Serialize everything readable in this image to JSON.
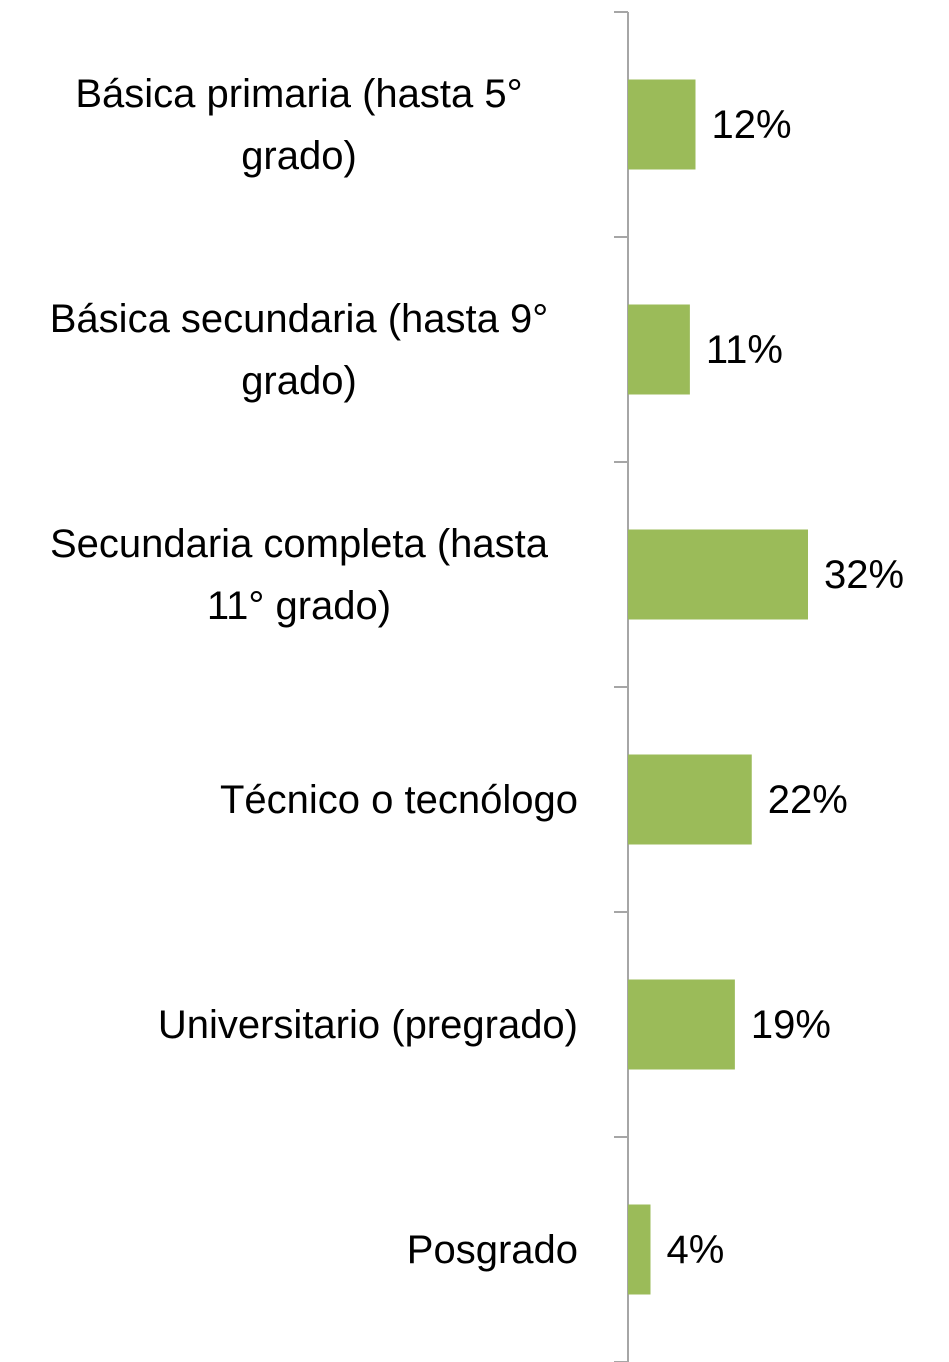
{
  "chart_data": {
    "type": "bar",
    "orientation": "horizontal",
    "categories": [
      "Básica primaria (hasta 5° grado)",
      "Básica secundaria (hasta 9° grado)",
      "Secundaria completa (hasta 11° grado)",
      "Técnico o tecnólogo",
      "Universitario (pregrado)",
      "Posgrado"
    ],
    "values": [
      12,
      11,
      32,
      22,
      19,
      4
    ],
    "value_labels": [
      "12%",
      "11%",
      "32%",
      "22%",
      "19%",
      "4%"
    ],
    "color": "#9bbb59"
  }
}
